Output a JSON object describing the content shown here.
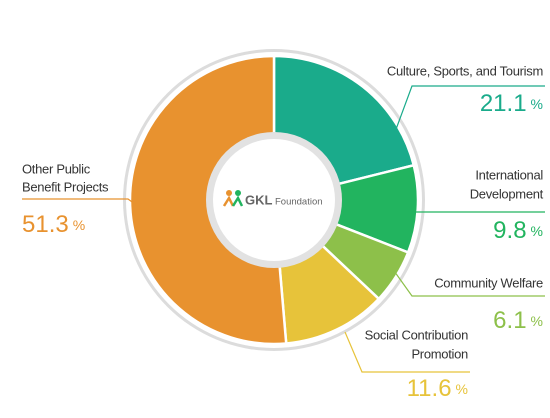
{
  "chart_data": {
    "type": "donut",
    "categories": [
      [
        "Culture, Sports, and Tourism"
      ],
      [
        "International",
        "Development"
      ],
      [
        "Community Welfare"
      ],
      [
        "Social Contribution",
        "Promotion"
      ],
      [
        "Other Public",
        "Benefit Projects"
      ]
    ],
    "values": [
      21.1,
      9.8,
      6.1,
      11.6,
      51.3
    ],
    "unit": "%",
    "colors": [
      "#1aab8b",
      "#22b45f",
      "#8dc04a",
      "#e7c33a",
      "#e8922f"
    ],
    "center_logo": {
      "brand": "GKL",
      "suffix": "Foundation"
    }
  }
}
